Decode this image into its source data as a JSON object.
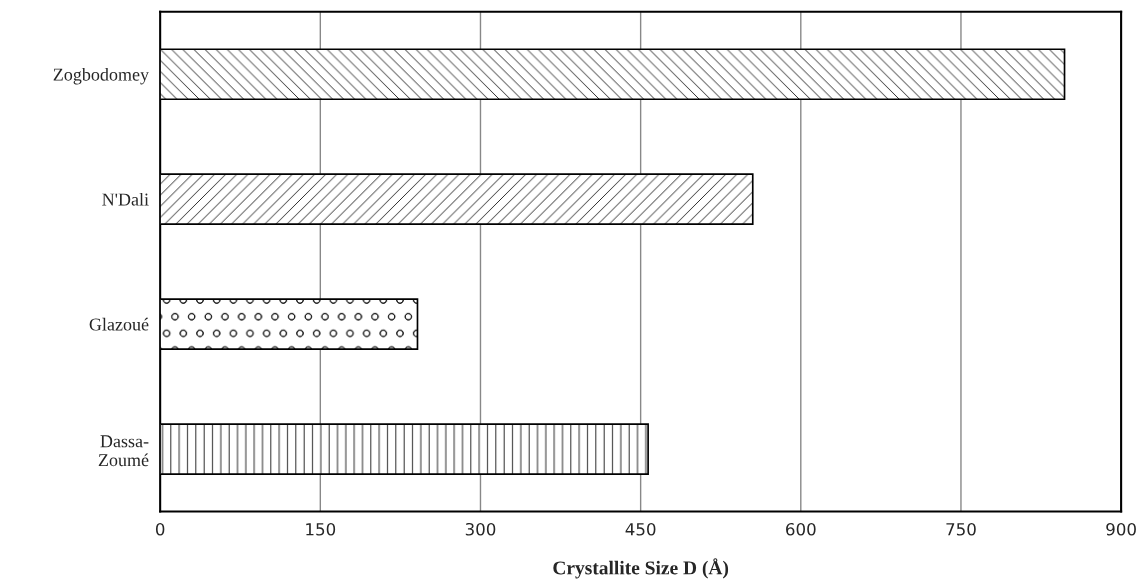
{
  "chart_data": {
    "type": "bar",
    "orientation": "horizontal",
    "xlabel": "Crystallite Size D (Å)",
    "categories": [
      "Zogbodomey",
      "N'Dali",
      "Glazoué",
      "Dassa-\nZoumé"
    ],
    "values": [
      847,
      555,
      241,
      457
    ],
    "colors": [
      "#000000",
      "#000000",
      "#000000",
      "#000000"
    ],
    "xlim": [
      0,
      900
    ],
    "xticks": [
      0,
      150,
      300,
      450,
      600,
      750,
      900
    ],
    "grid": "x",
    "legend": false
  }
}
